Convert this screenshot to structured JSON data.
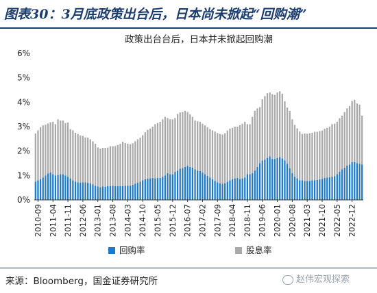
{
  "header": {
    "title": "图表30：3月底政策出台后，日本尚未掀起“回购潮”"
  },
  "footer": {
    "source": "来源：Bloomberg，国金证券研究所",
    "watermark": "赵伟宏观探索"
  },
  "colors": {
    "buyback": "#1f78c8",
    "dividend": "#a9a9a9",
    "title": "#1b3d6e"
  },
  "chart_data": {
    "type": "bar",
    "stacked": true,
    "title": "政策出台台后，日本并未掀起回购潮",
    "ylim": [
      0,
      6
    ],
    "yticks": [
      "0%",
      "1%",
      "2%",
      "3%",
      "4%",
      "5%",
      "6%"
    ],
    "xtick_labels": [
      "2010-09",
      "2011-04",
      "2011-11",
      "2012-06",
      "2013-01",
      "2013-08",
      "2014-03",
      "2014-10",
      "2015-05",
      "2015-12",
      "2016-07",
      "2017-02",
      "2017-09",
      "2018-04",
      "2018-11",
      "2019-06",
      "2020-01",
      "2020-08",
      "2021-03",
      "2021-10",
      "2022-05",
      "2022-12"
    ],
    "legend_position": "bottom",
    "series": [
      {
        "name": "回购率",
        "color": "#1f78c8",
        "values": [
          0.75,
          0.8,
          0.85,
          0.92,
          1.0,
          1.08,
          1.12,
          1.05,
          1.0,
          1.02,
          1.05,
          1.05,
          1.0,
          0.95,
          0.88,
          0.8,
          0.75,
          0.72,
          0.7,
          0.72,
          0.72,
          0.7,
          0.68,
          0.63,
          0.58,
          0.55,
          0.52,
          0.55,
          0.54,
          0.56,
          0.57,
          0.58,
          0.56,
          0.56,
          0.57,
          0.57,
          0.58,
          0.58,
          0.58,
          0.62,
          0.66,
          0.7,
          0.75,
          0.8,
          0.85,
          0.87,
          0.88,
          0.9,
          0.88,
          0.9,
          0.9,
          0.95,
          1.0,
          1.1,
          1.05,
          1.05,
          1.15,
          1.2,
          1.28,
          1.3,
          1.35,
          1.4,
          1.35,
          1.32,
          1.25,
          1.2,
          1.18,
          1.12,
          1.05,
          0.98,
          0.92,
          0.85,
          0.78,
          0.72,
          0.68,
          0.66,
          0.68,
          0.74,
          0.8,
          0.85,
          0.88,
          0.9,
          0.86,
          0.88,
          0.92,
          1.05,
          1.05,
          1.1,
          1.2,
          1.35,
          1.5,
          1.62,
          1.65,
          1.72,
          1.78,
          1.68,
          1.68,
          1.72,
          1.75,
          1.7,
          1.62,
          1.48,
          1.3,
          1.1,
          0.95,
          0.88,
          0.8,
          0.8,
          0.77,
          0.78,
          0.78,
          0.8,
          0.8,
          0.82,
          0.84,
          0.86,
          0.9,
          0.92,
          0.93,
          0.95,
          0.97,
          1.05,
          1.15,
          1.25,
          1.32,
          1.4,
          1.45,
          1.55,
          1.55,
          1.5,
          1.48,
          1.45
        ]
      },
      {
        "name": "股息率",
        "color": "#a9a9a9",
        "values": [
          1.97,
          2.05,
          2.13,
          2.13,
          2.08,
          2.05,
          2.06,
          2.15,
          2.1,
          2.28,
          2.2,
          2.2,
          2.15,
          2.22,
          2.02,
          2.05,
          2.0,
          1.98,
          1.94,
          1.9,
          1.84,
          1.85,
          1.8,
          1.77,
          1.72,
          1.6,
          1.58,
          1.58,
          1.59,
          1.58,
          1.63,
          1.62,
          1.64,
          1.69,
          1.73,
          1.81,
          1.75,
          1.72,
          1.7,
          1.7,
          1.74,
          1.78,
          1.8,
          1.85,
          1.92,
          2.0,
          2.04,
          2.1,
          2.22,
          2.25,
          2.3,
          2.35,
          2.4,
          2.25,
          2.25,
          2.25,
          2.2,
          2.32,
          2.3,
          2.3,
          2.3,
          2.2,
          2.15,
          2.08,
          2.0,
          2.02,
          2.02,
          2.0,
          2.0,
          2.0,
          1.98,
          2.0,
          2.02,
          2.02,
          2.02,
          2.02,
          2.05,
          2.1,
          2.12,
          2.1,
          2.12,
          2.1,
          2.2,
          2.24,
          2.28,
          2.05,
          2.05,
          2.3,
          2.45,
          2.4,
          2.3,
          2.5,
          2.6,
          2.65,
          2.62,
          2.65,
          2.62,
          2.68,
          2.7,
          2.65,
          2.42,
          2.3,
          2.35,
          2.2,
          2.12,
          2.05,
          2.0,
          1.9,
          1.95,
          1.93,
          1.95,
          1.95,
          1.99,
          1.97,
          1.98,
          1.98,
          2.02,
          2.03,
          2.07,
          2.15,
          2.15,
          2.15,
          2.2,
          2.2,
          2.28,
          2.35,
          2.4,
          2.5,
          2.55,
          2.45,
          2.42,
          2.0
        ]
      }
    ]
  }
}
